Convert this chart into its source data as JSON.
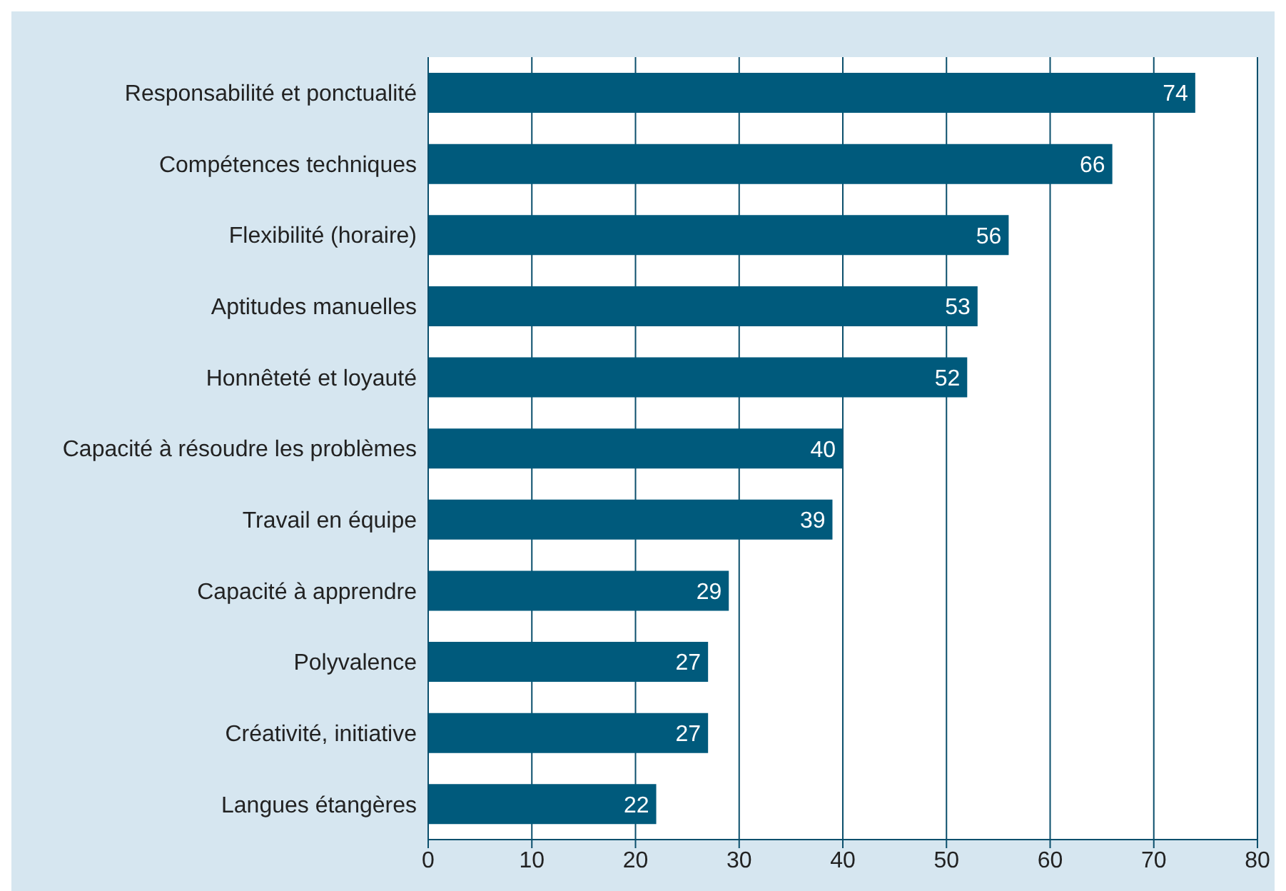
{
  "chart_data": {
    "type": "bar",
    "orientation": "horizontal",
    "categories": [
      "Responsabilité et ponctualité",
      "Compétences techniques",
      "Flexibilité (horaire)",
      "Aptitudes manuelles",
      "Honnêteté et loyauté",
      "Capacité à résoudre les problèmes",
      "Travail en équipe",
      "Capacité à apprendre",
      "Polyvalence",
      "Créativité, initiative",
      "Langues étangères"
    ],
    "values": [
      74,
      66,
      56,
      53,
      52,
      40,
      39,
      29,
      27,
      27,
      22
    ],
    "color": "#005a7c",
    "xlim": [
      0,
      80
    ],
    "xticks": [
      0,
      10,
      20,
      30,
      40,
      50,
      60,
      70,
      80
    ],
    "grid": "x",
    "data_labels": true
  }
}
